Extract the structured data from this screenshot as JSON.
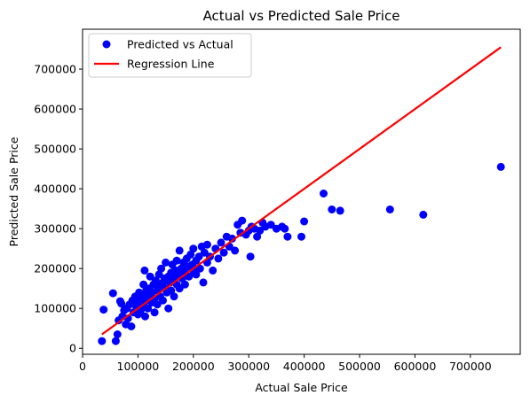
{
  "chart_data": {
    "type": "scatter",
    "title": "Actual vs Predicted Sale Price",
    "xlabel": "Actual Sale Price",
    "ylabel": "Predicted Sale Price",
    "xlim": [
      0,
      790000
    ],
    "ylim": [
      -15000,
      800000
    ],
    "x_ticks": [
      0,
      100000,
      200000,
      300000,
      400000,
      500000,
      600000,
      700000
    ],
    "y_ticks": [
      0,
      100000,
      200000,
      300000,
      400000,
      500000,
      600000,
      700000
    ],
    "grid": false,
    "legend_position": "top-left",
    "series": [
      {
        "name": "Predicted vs Actual",
        "kind": "scatter",
        "color": "#0000ff",
        "points": [
          [
            35000,
            18000
          ],
          [
            38000,
            97000
          ],
          [
            55000,
            138000
          ],
          [
            60000,
            18000
          ],
          [
            63000,
            35000
          ],
          [
            65000,
            70000
          ],
          [
            68000,
            118000
          ],
          [
            70000,
            112000
          ],
          [
            72000,
            80000
          ],
          [
            75000,
            95000
          ],
          [
            78000,
            60000
          ],
          [
            80000,
            100000
          ],
          [
            82000,
            75000
          ],
          [
            85000,
            110000
          ],
          [
            88000,
            55000
          ],
          [
            90000,
            120000
          ],
          [
            92000,
            90000
          ],
          [
            95000,
            130000
          ],
          [
            97000,
            105000
          ],
          [
            100000,
            115000
          ],
          [
            100000,
            85000
          ],
          [
            102000,
            140000
          ],
          [
            105000,
            125000
          ],
          [
            105000,
            95000
          ],
          [
            108000,
            135000
          ],
          [
            110000,
            110000
          ],
          [
            110000,
            160000
          ],
          [
            112000,
            195000
          ],
          [
            113000,
            80000
          ],
          [
            115000,
            145000
          ],
          [
            115000,
            120000
          ],
          [
            118000,
            100000
          ],
          [
            120000,
            150000
          ],
          [
            120000,
            130000
          ],
          [
            122000,
            180000
          ],
          [
            125000,
            115000
          ],
          [
            125000,
            140000
          ],
          [
            128000,
            160000
          ],
          [
            130000,
            125000
          ],
          [
            130000,
            90000
          ],
          [
            132000,
            170000
          ],
          [
            135000,
            145000
          ],
          [
            135000,
            110000
          ],
          [
            138000,
            185000
          ],
          [
            140000,
            155000
          ],
          [
            140000,
            130000
          ],
          [
            142000,
            200000
          ],
          [
            145000,
            165000
          ],
          [
            145000,
            120000
          ],
          [
            148000,
            175000
          ],
          [
            150000,
            150000
          ],
          [
            150000,
            215000
          ],
          [
            152000,
            140000
          ],
          [
            155000,
            180000
          ],
          [
            155000,
            100000
          ],
          [
            158000,
            165000
          ],
          [
            160000,
            190000
          ],
          [
            160000,
            145000
          ],
          [
            162000,
            210000
          ],
          [
            165000,
            175000
          ],
          [
            165000,
            130000
          ],
          [
            168000,
            195000
          ],
          [
            170000,
            160000
          ],
          [
            170000,
            220000
          ],
          [
            172000,
            185000
          ],
          [
            175000,
            245000
          ],
          [
            175000,
            150000
          ],
          [
            178000,
            200000
          ],
          [
            180000,
            175000
          ],
          [
            182000,
            215000
          ],
          [
            185000,
            190000
          ],
          [
            185000,
            160000
          ],
          [
            188000,
            225000
          ],
          [
            190000,
            205000
          ],
          [
            192000,
            180000
          ],
          [
            195000,
            235000
          ],
          [
            198000,
            210000
          ],
          [
            200000,
            195000
          ],
          [
            200000,
            250000
          ],
          [
            205000,
            220000
          ],
          [
            205000,
            185000
          ],
          [
            210000,
            230000
          ],
          [
            212000,
            200000
          ],
          [
            215000,
            255000
          ],
          [
            218000,
            165000
          ],
          [
            220000,
            240000
          ],
          [
            225000,
            215000
          ],
          [
            225000,
            260000
          ],
          [
            230000,
            230000
          ],
          [
            235000,
            195000
          ],
          [
            240000,
            250000
          ],
          [
            245000,
            225000
          ],
          [
            250000,
            265000
          ],
          [
            255000,
            240000
          ],
          [
            260000,
            280000
          ],
          [
            265000,
            255000
          ],
          [
            270000,
            275000
          ],
          [
            275000,
            245000
          ],
          [
            280000,
            310000
          ],
          [
            285000,
            290000
          ],
          [
            288000,
            320000
          ],
          [
            295000,
            285000
          ],
          [
            300000,
            295000
          ],
          [
            303000,
            230000
          ],
          [
            305000,
            305000
          ],
          [
            310000,
            300000
          ],
          [
            315000,
            280000
          ],
          [
            320000,
            295000
          ],
          [
            325000,
            315000
          ],
          [
            330000,
            305000
          ],
          [
            340000,
            310000
          ],
          [
            350000,
            300000
          ],
          [
            360000,
            305000
          ],
          [
            365000,
            300000
          ],
          [
            370000,
            280000
          ],
          [
            395000,
            280000
          ],
          [
            400000,
            318000
          ],
          [
            435000,
            388000
          ],
          [
            450000,
            348000
          ],
          [
            465000,
            345000
          ],
          [
            555000,
            348000
          ],
          [
            615000,
            335000
          ],
          [
            755000,
            455000
          ]
        ]
      },
      {
        "name": "Regression Line",
        "kind": "line",
        "color": "#ff0000",
        "points": [
          [
            35000,
            35000
          ],
          [
            755000,
            755000
          ]
        ]
      }
    ]
  }
}
